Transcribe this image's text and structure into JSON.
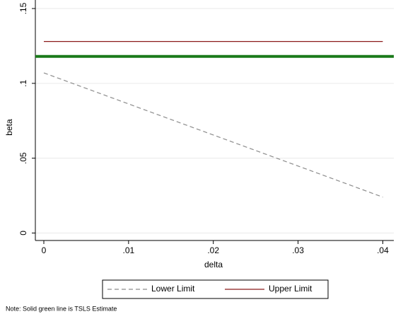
{
  "chart_data": {
    "type": "line",
    "x_label": "delta",
    "y_label": "beta",
    "xlim": [
      -0.001,
      0.0413
    ],
    "ylim": [
      -0.005,
      0.1557
    ],
    "xticks": [
      0,
      {
        "value": 0.01,
        "label": ".01"
      },
      {
        "value": 0.02,
        "label": ".02"
      },
      {
        "value": 0.03,
        "label": ".03"
      },
      {
        "value": 0.04,
        "label": ".04"
      }
    ],
    "yticks": [
      0,
      {
        "value": 0.05,
        "label": ".05"
      },
      {
        "value": 0.1,
        "label": ".1"
      },
      {
        "value": 0.15,
        "label": ".15"
      }
    ],
    "grid": true,
    "series": [
      {
        "name": "Lower Limit",
        "color": "#8c8c8c",
        "dashed": true,
        "x": [
          0,
          0.04
        ],
        "values": [
          0.107,
          0.024
        ]
      },
      {
        "name": "Upper Limit",
        "color": "#8b1a1a",
        "dashed": false,
        "x": [
          0,
          0.04
        ],
        "values": [
          0.128,
          0.128
        ]
      }
    ],
    "yline": {
      "value": 0.118,
      "color": "#1a7a1a"
    },
    "note": "Note: Solid green line is TSLS Estimate"
  }
}
